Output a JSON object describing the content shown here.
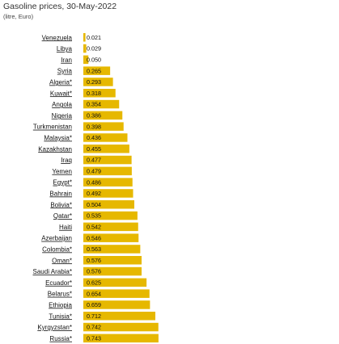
{
  "chart_data": {
    "type": "bar",
    "orientation": "horizontal",
    "title": "Gasoline prices, 30-May-2022",
    "subtitle": "(litre, Euro)",
    "bar_color": "#e6b800",
    "categories": [
      "Venezuela",
      "Libya",
      "Iran",
      "Syria",
      "Algeria*",
      "Kuwait*",
      "Angola",
      "Nigeria",
      "Turkmenistan",
      "Malaysia*",
      "Kazakhstan",
      "Iraq",
      "Yemen",
      "Egypt*",
      "Bahrain",
      "Bolivia*",
      "Qatar*",
      "Haiti",
      "Azerbaijan",
      "Colombia*",
      "Oman*",
      "Saudi Arabia*",
      "Ecuador*",
      "Belarus*",
      "Ethiopia",
      "Tunisia*",
      "Kyrgyzstan*",
      "Russia*"
    ],
    "values": [
      0.021,
      0.029,
      0.05,
      0.265,
      0.293,
      0.318,
      0.354,
      0.386,
      0.398,
      0.436,
      0.455,
      0.477,
      0.479,
      0.486,
      0.492,
      0.504,
      0.535,
      0.542,
      0.546,
      0.563,
      0.576,
      0.576,
      0.625,
      0.654,
      0.659,
      0.712,
      0.742,
      0.743
    ],
    "value_labels": [
      "0.021",
      "0.029",
      "0.050",
      "0.265",
      "0.293",
      "0.318",
      "0.354",
      "0.386",
      "0.398",
      "0.436",
      "0.455",
      "0.477",
      "0.479",
      "0.486",
      "0.492",
      "0.504",
      "0.535",
      "0.542",
      "0.546",
      "0.563",
      "0.576",
      "0.576",
      "0.625",
      "0.654",
      "0.659",
      "0.712",
      "0.742",
      "0.743"
    ]
  }
}
